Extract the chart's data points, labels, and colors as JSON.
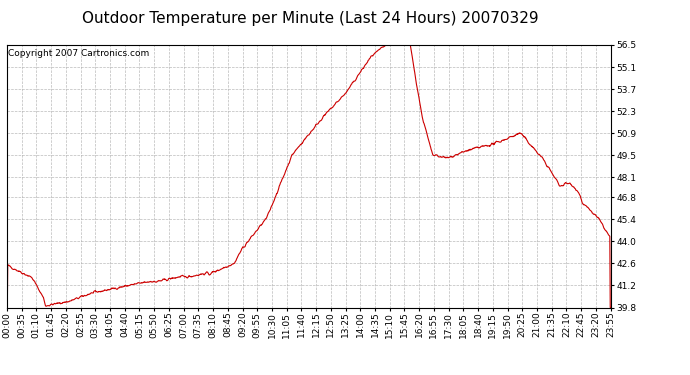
{
  "title": "Outdoor Temperature per Minute (Last 24 Hours) 20070329",
  "copyright_text": "Copyright 2007 Cartronics.com",
  "line_color": "#cc0000",
  "background_color": "#ffffff",
  "plot_bg_color": "#ffffff",
  "grid_color": "#aaaaaa",
  "ylim": [
    39.8,
    56.5
  ],
  "yticks": [
    39.8,
    41.2,
    42.6,
    44.0,
    45.4,
    46.8,
    48.1,
    49.5,
    50.9,
    52.3,
    53.7,
    55.1,
    56.5
  ],
  "xtick_labels": [
    "00:00",
    "00:35",
    "01:10",
    "01:45",
    "02:20",
    "02:55",
    "03:30",
    "04:05",
    "04:40",
    "05:15",
    "05:50",
    "06:25",
    "07:00",
    "07:35",
    "08:10",
    "08:45",
    "09:20",
    "09:55",
    "10:30",
    "11:05",
    "11:40",
    "12:15",
    "12:50",
    "13:25",
    "14:00",
    "14:35",
    "15:10",
    "15:45",
    "16:20",
    "16:55",
    "17:30",
    "18:05",
    "18:40",
    "19:15",
    "19:50",
    "20:25",
    "21:00",
    "21:35",
    "22:10",
    "22:45",
    "23:20",
    "23:55"
  ],
  "title_fontsize": 11,
  "tick_fontsize": 6.5,
  "copyright_fontsize": 6.5
}
